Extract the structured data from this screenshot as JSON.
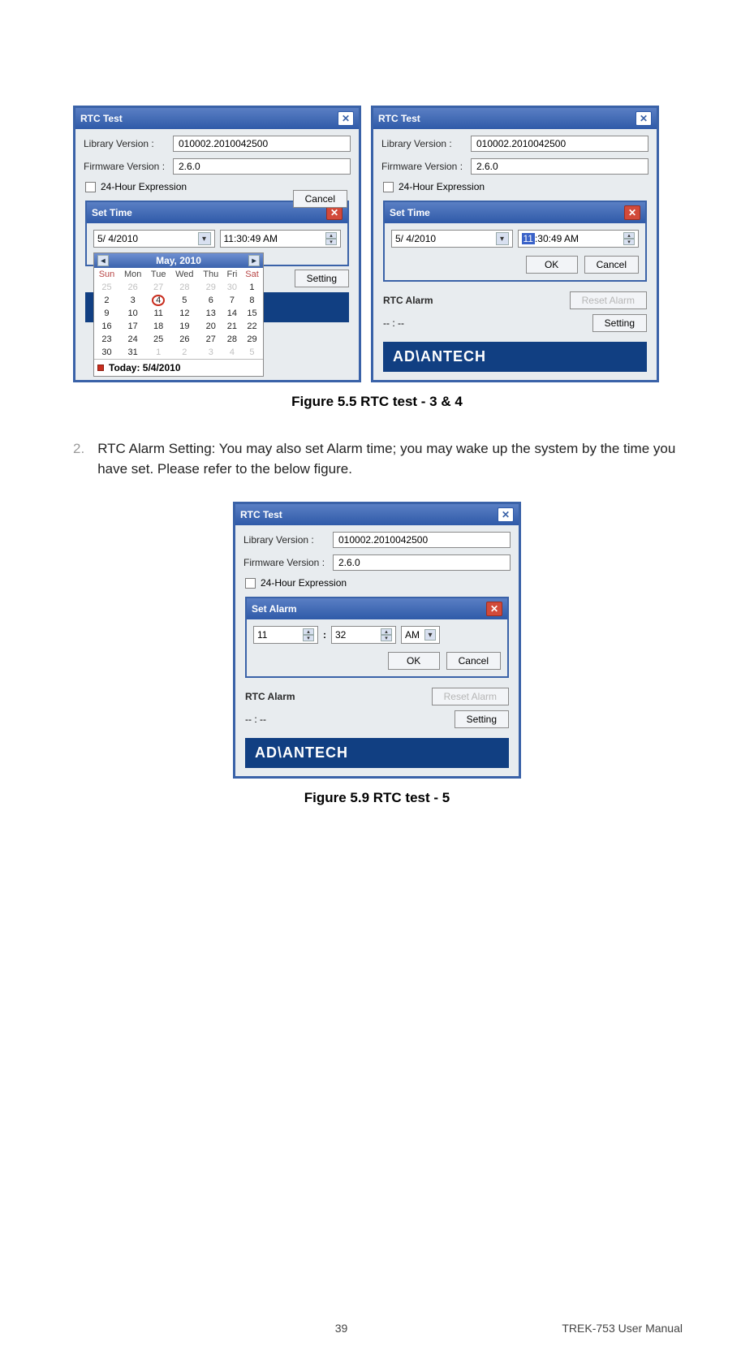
{
  "colors": {
    "titlebar_start": "#5a7fc4",
    "titlebar_end": "#2f5aa8",
    "border": "#3a62a8",
    "panel_bg": "#e8ecef",
    "logo_bg": "#113f82",
    "red_close": "#d24a3a",
    "cal_ring": "#c82d1e",
    "disabled_text": "#b6b6b6",
    "time_highlight_bg": "#3a62c8"
  },
  "common": {
    "window_title": "RTC Test",
    "library_label": "Library Version :",
    "firmware_label": "Firmware Version :",
    "library_value": "010002.2010042500",
    "firmware_value": "2.6.0",
    "checkbox_label": "24-Hour Expression",
    "set_time_title": "Set Time",
    "date_value": "5/  4/2010",
    "time_value": "11:30:49 AM",
    "ok": "OK",
    "cancel": "Cancel",
    "rtc_alarm_label": "RTC Alarm",
    "reset_alarm": "Reset Alarm",
    "setting": "Setting",
    "alarm_placeholder": "-- : --",
    "logo": "AD\\ANTECH"
  },
  "fig1_left": {
    "calendar": {
      "title": "May, 2010",
      "day_headers": [
        "Sun",
        "Mon",
        "Tue",
        "Wed",
        "Thu",
        "Fri",
        "Sat"
      ],
      "weeks": [
        [
          {
            "d": "25",
            "o": true
          },
          {
            "d": "26",
            "o": true
          },
          {
            "d": "27",
            "o": true
          },
          {
            "d": "28",
            "o": true
          },
          {
            "d": "29",
            "o": true
          },
          {
            "d": "30",
            "o": true
          },
          {
            "d": "1"
          }
        ],
        [
          {
            "d": "2"
          },
          {
            "d": "3"
          },
          {
            "d": "4",
            "sel": true
          },
          {
            "d": "5"
          },
          {
            "d": "6"
          },
          {
            "d": "7"
          },
          {
            "d": "8"
          }
        ],
        [
          {
            "d": "9"
          },
          {
            "d": "10"
          },
          {
            "d": "11"
          },
          {
            "d": "12"
          },
          {
            "d": "13"
          },
          {
            "d": "14"
          },
          {
            "d": "15"
          }
        ],
        [
          {
            "d": "16"
          },
          {
            "d": "17"
          },
          {
            "d": "18"
          },
          {
            "d": "19"
          },
          {
            "d": "20"
          },
          {
            "d": "21"
          },
          {
            "d": "22"
          }
        ],
        [
          {
            "d": "23"
          },
          {
            "d": "24"
          },
          {
            "d": "25"
          },
          {
            "d": "26"
          },
          {
            "d": "27"
          },
          {
            "d": "28"
          },
          {
            "d": "29"
          }
        ],
        [
          {
            "d": "30"
          },
          {
            "d": "31"
          },
          {
            "d": "1",
            "o": true
          },
          {
            "d": "2",
            "o": true
          },
          {
            "d": "3",
            "o": true
          },
          {
            "d": "4",
            "o": true
          },
          {
            "d": "5",
            "o": true
          }
        ]
      ],
      "today_label": "Today: 5/4/2010"
    }
  },
  "fig1_right": {
    "time_prefix_highlight": "11",
    "time_rest": ":30:49 AM"
  },
  "caption1": "Figure 5.5 RTC test - 3 & 4",
  "list": {
    "num": "2.",
    "text": "RTC Alarm Setting: You may also set Alarm time; you may wake up the system by the time you have set. Please refer to the below figure."
  },
  "fig2": {
    "set_alarm_title": "Set Alarm",
    "hour": "11",
    "minute": "32",
    "ampm": "AM"
  },
  "caption2": "Figure 5.9 RTC test - 5",
  "footer": {
    "page": "39",
    "doc": "TREK-753 User Manual"
  }
}
